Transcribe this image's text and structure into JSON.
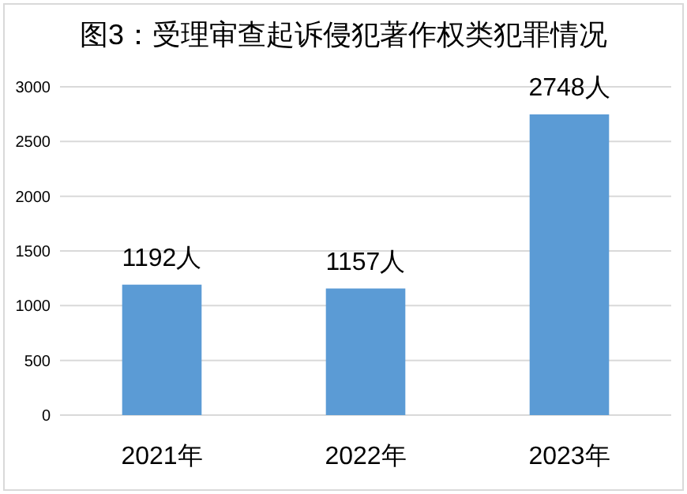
{
  "chart_data": {
    "type": "bar",
    "title": "图3：受理审查起诉侵犯著作权类犯罪情况",
    "categories": [
      "2021年",
      "2022年",
      "2023年"
    ],
    "values": [
      1192,
      1157,
      2748
    ],
    "value_labels": [
      "1192人",
      "1157人",
      "2748人"
    ],
    "color": "#5b9bd5",
    "ylim": [
      0,
      3000
    ],
    "yticks": [
      0,
      500,
      1000,
      1500,
      2000,
      2500,
      3000
    ],
    "grid": "y"
  }
}
